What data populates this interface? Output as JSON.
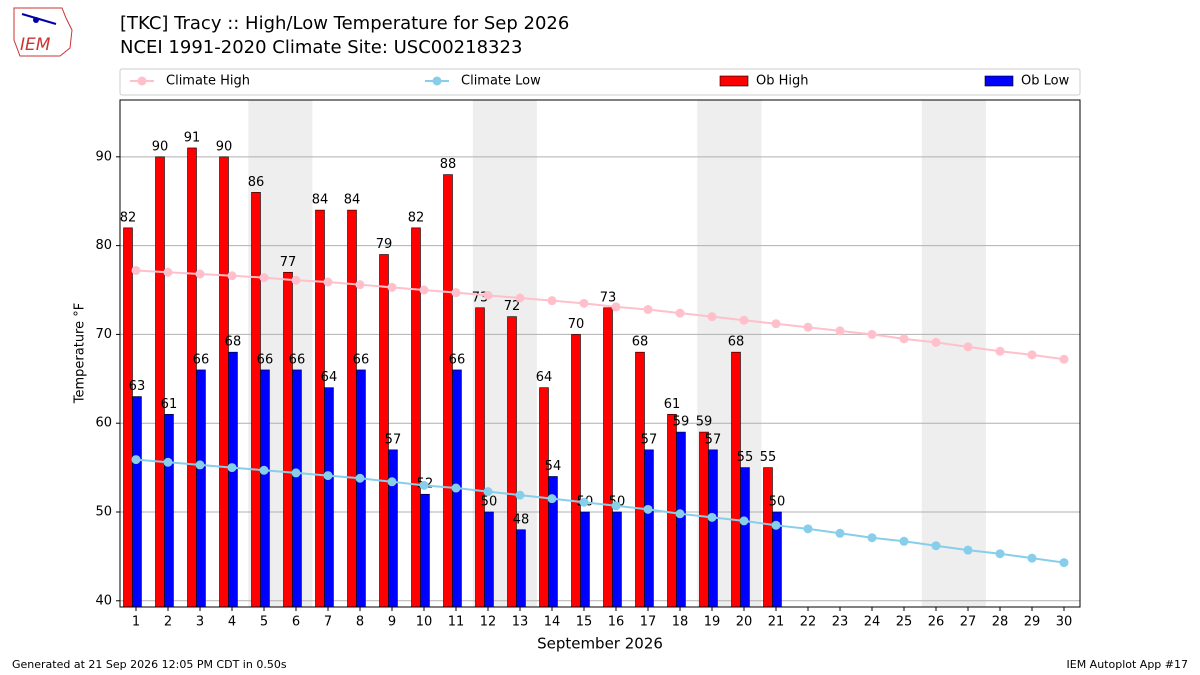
{
  "chart_data": {
    "type": "bar",
    "title": "[TKC] Tracy :: High/Low Temperature for Sep 2026",
    "subtitle": "NCEI 1991-2020 Climate Site: USC00218323",
    "logo_text": "IEM",
    "footer_left": "Generated at 21 Sep 2026 12:05 PM CDT in 0.50s",
    "footer_right": "IEM Autoplot App #17",
    "xlabel": "September 2026",
    "ylabel": "Temperature °F",
    "x": [
      1,
      2,
      3,
      4,
      5,
      6,
      7,
      8,
      9,
      10,
      11,
      12,
      13,
      14,
      15,
      16,
      17,
      18,
      19,
      20,
      21,
      22,
      23,
      24,
      25,
      26,
      27,
      28,
      29,
      30
    ],
    "xlim": [
      0.5,
      30.5
    ],
    "xticks": [
      1,
      2,
      3,
      4,
      5,
      6,
      7,
      8,
      9,
      10,
      11,
      12,
      13,
      14,
      15,
      16,
      17,
      18,
      19,
      20,
      21,
      22,
      23,
      24,
      25,
      26,
      27,
      28,
      29,
      30
    ],
    "ylim": [
      39.3,
      96.4
    ],
    "yticks": [
      40,
      50,
      60,
      70,
      80,
      90
    ],
    "grid": true,
    "series": [
      {
        "name": "Climate High",
        "type": "line",
        "color": "#ffc0cb",
        "values": [
          77.2,
          77.0,
          76.8,
          76.6,
          76.4,
          76.1,
          75.9,
          75.6,
          75.3,
          75.0,
          74.7,
          74.4,
          74.1,
          73.8,
          73.5,
          73.1,
          72.8,
          72.4,
          72.0,
          71.6,
          71.2,
          70.8,
          70.4,
          70.0,
          69.5,
          69.1,
          68.6,
          68.1,
          67.7,
          67.2
        ]
      },
      {
        "name": "Climate Low",
        "type": "line",
        "color": "#87ceeb",
        "values": [
          55.9,
          55.6,
          55.3,
          55.0,
          54.7,
          54.4,
          54.1,
          53.8,
          53.4,
          53.0,
          52.7,
          52.3,
          51.9,
          51.5,
          51.1,
          50.7,
          50.3,
          49.8,
          49.4,
          49.0,
          48.5,
          48.1,
          47.6,
          47.1,
          46.7,
          46.2,
          45.7,
          45.3,
          44.8,
          44.3
        ]
      },
      {
        "name": "Ob High",
        "type": "bar",
        "color": "#ff0000",
        "values": [
          82,
          90,
          91,
          90,
          86,
          77,
          84,
          84,
          79,
          82,
          88,
          73,
          72,
          64,
          70,
          73,
          68,
          61,
          59,
          68,
          55,
          null,
          null,
          null,
          null,
          null,
          null,
          null,
          null,
          null
        ]
      },
      {
        "name": "Ob Low",
        "type": "bar",
        "color": "#0000ff",
        "values": [
          63,
          61,
          66,
          68,
          66,
          66,
          64,
          66,
          57,
          52,
          66,
          50,
          48,
          54,
          50,
          50,
          57,
          59,
          57,
          55,
          50,
          null,
          null,
          null,
          null,
          null,
          null,
          null,
          null,
          null
        ]
      }
    ]
  }
}
